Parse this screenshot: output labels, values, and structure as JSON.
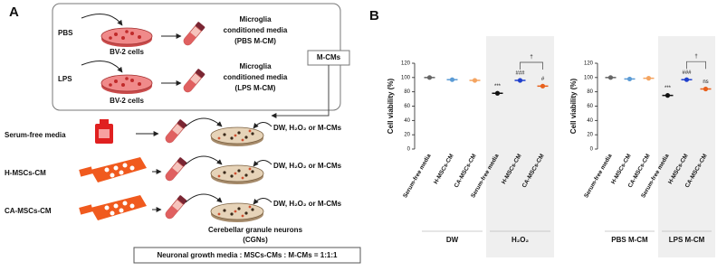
{
  "panel_a": {
    "label": "A",
    "pbs": "PBS",
    "lps": "LPS",
    "bv2_cells": [
      "BV-2 cells",
      "BV-2 cells"
    ],
    "pbs_media": [
      "Microglia",
      "conditioned media",
      "(PBS M-CM)"
    ],
    "lps_media": [
      "Microglia",
      "conditioned media",
      "(LPS M-CM)"
    ],
    "m_cms": "M-CMs",
    "treatments": [
      "Serum-free media",
      "H-MSCs-CM",
      "CA-MSCs-CM"
    ],
    "additions": [
      "DW, H₂O₂ or M-CMs",
      "DW, H₂O₂ or M-CMs",
      "DW, H₂O₂ or M-CMs"
    ],
    "cgns": [
      "Cerebellar granule neurons",
      "(CGNs)"
    ],
    "footer": "Neuronal growth media : MSCs-CMs : M-CMs = 1:1:1"
  },
  "panel_b": {
    "label": "B"
  },
  "chart_data": [
    {
      "type": "dot",
      "y_label": "Cell viability (%)",
      "categories": [
        "Serum-free media",
        "H-MSCs-CM",
        "CA-MSCs-CM",
        "Serum-free media",
        "H-MSCs-CM",
        "CA-MSCs-CM"
      ],
      "values": [
        100,
        97,
        96,
        78,
        96,
        88
      ],
      "colors": [
        "#666666",
        "#5b9bd5",
        "#f4a460",
        "#111111",
        "#1f3fcc",
        "#e8601c"
      ],
      "annotations": [
        null,
        null,
        null,
        "***",
        "###",
        "#"
      ],
      "bracket_label": "†",
      "groups": [
        "DW",
        "H₂O₂"
      ],
      "group_backgrounds": [
        null,
        "#efefef"
      ],
      "ylim": [
        0,
        120
      ],
      "yticks": [
        0,
        20,
        40,
        60,
        80,
        100,
        120
      ]
    },
    {
      "type": "dot",
      "y_label": "Cell viability (%)",
      "categories": [
        "Serum-free media",
        "H-MSCs-CM",
        "CA-MSCs-CM",
        "Serum-free media",
        "H-MSCs-CM",
        "CA-MSCs-CM"
      ],
      "values": [
        100,
        98,
        99,
        75,
        97,
        84
      ],
      "colors": [
        "#666666",
        "#5b9bd5",
        "#f4a460",
        "#111111",
        "#1f3fcc",
        "#e8601c"
      ],
      "annotations": [
        null,
        null,
        null,
        "***",
        "###",
        "ns"
      ],
      "bracket_label": "†",
      "groups": [
        "PBS M-CM",
        "LPS M-CM"
      ],
      "group_backgrounds": [
        null,
        "#efefef"
      ],
      "ylim": [
        0,
        120
      ],
      "yticks": [
        0,
        20,
        40,
        60,
        80,
        100,
        120
      ]
    }
  ]
}
